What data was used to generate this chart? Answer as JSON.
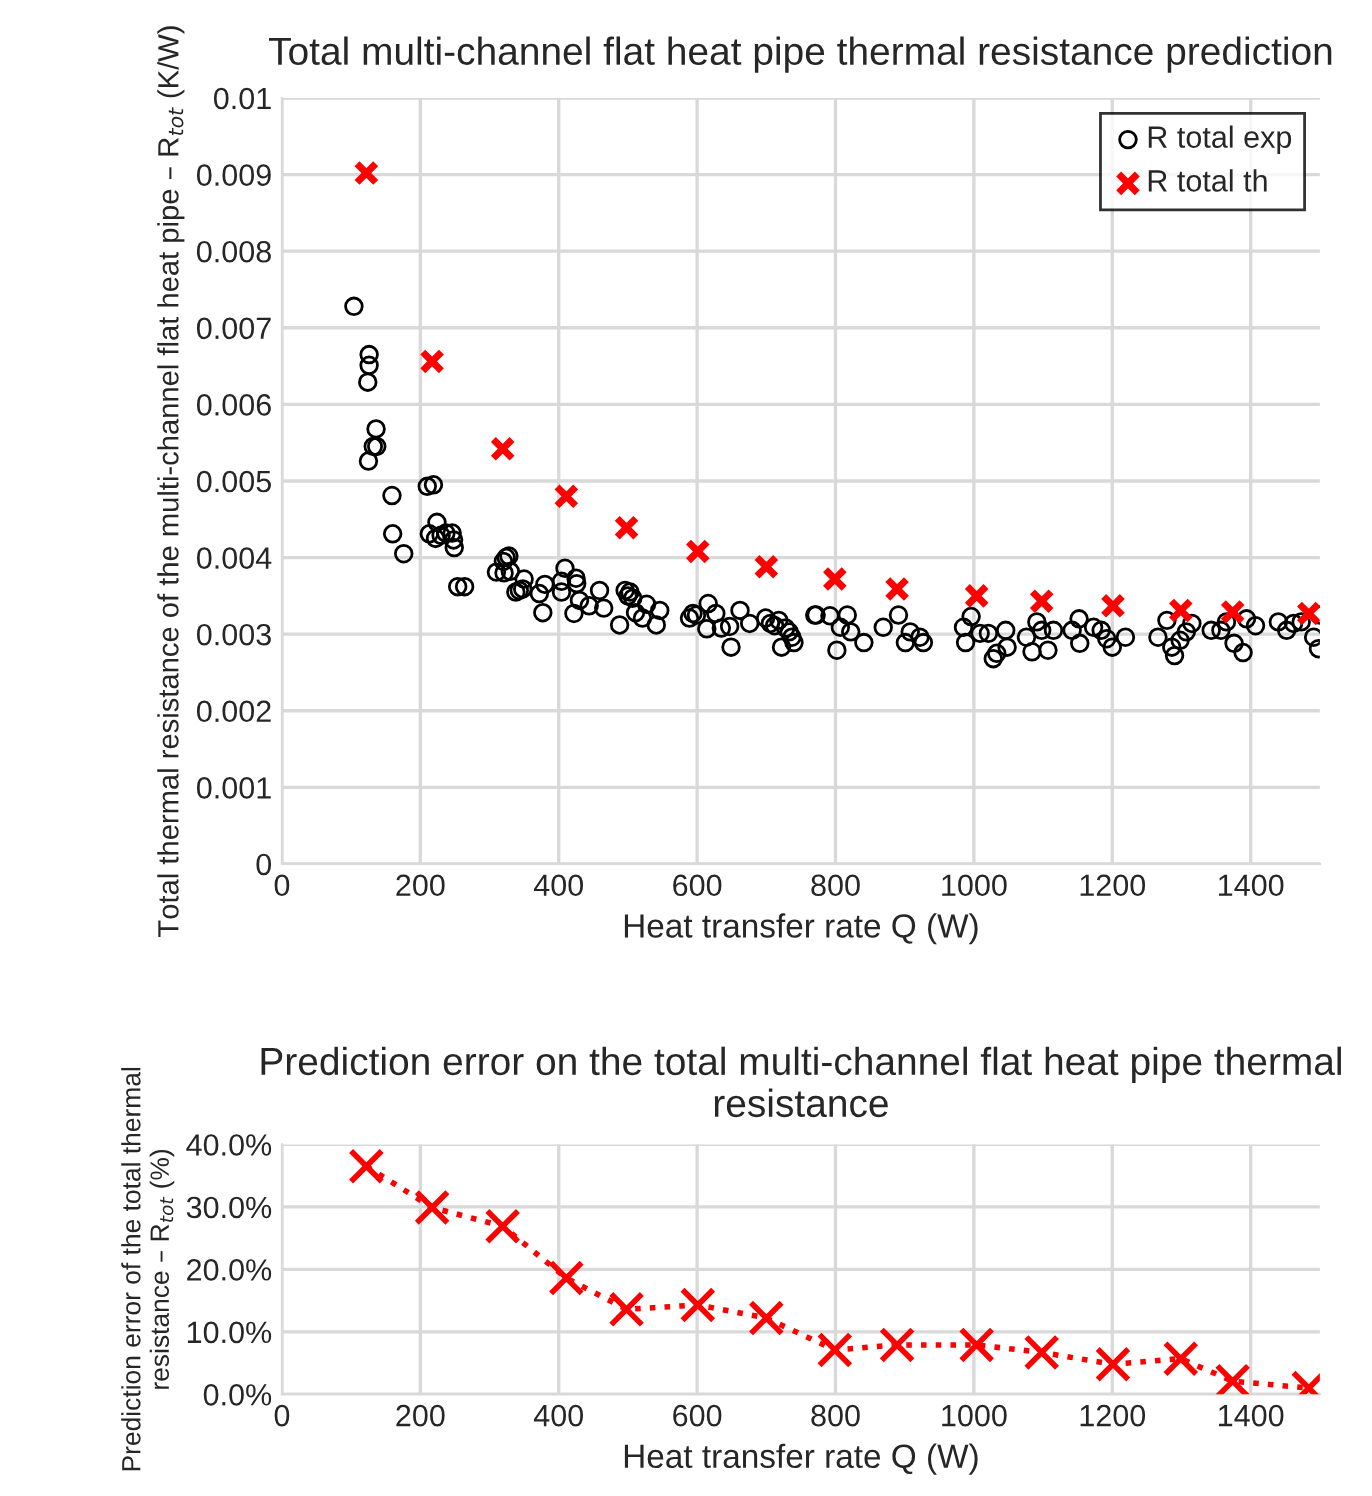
{
  "chart_data": [
    {
      "type": "scatter",
      "title": "Total multi-channel flat heat pipe thermal resistance prediction",
      "xlabel": "Heat transfer rate Q (W)",
      "ylabel": "Total thermal resistance of the multi-channel flat heat pipe – R$_{tot}$ (K/W)",
      "xlim": [
        0,
        1500
      ],
      "xticks": [
        0,
        200,
        400,
        600,
        800,
        1000,
        1200,
        1400
      ],
      "ylim": [
        0,
        0.01
      ],
      "yticks": [
        0,
        0.001,
        0.002,
        0.003,
        0.004,
        0.005,
        0.006,
        0.007,
        0.008,
        0.009,
        0.01
      ],
      "grid": true,
      "legend": "top right",
      "series": [
        {
          "name": "R total exp",
          "color": "#000000",
          "marker": "circle",
          "x": [
            104,
            126,
            126,
            124,
            136,
            132,
            137,
            125,
            159,
            160,
            176,
            210,
            219,
            213,
            224,
            222,
            230,
            237,
            246,
            249,
            248,
            254,
            264,
            310,
            320,
            324,
            328,
            321,
            330,
            338,
            343,
            350,
            348,
            372,
            377,
            380,
            404,
            409,
            404,
            422,
            425,
            426,
            430,
            444,
            459,
            465,
            488,
            496,
            500,
            503,
            507,
            511,
            521,
            527,
            541,
            546,
            589,
            594,
            599,
            616,
            614,
            627,
            635,
            647,
            649,
            662,
            676,
            699,
            706,
            712,
            718,
            722,
            728,
            733,
            737,
            740,
            770,
            772,
            792,
            802,
            807,
            817,
            822,
            841,
            869,
            891,
            901,
            908,
            922,
            927,
            985,
            988,
            996,
            1009,
            1021,
            1028,
            1033,
            1046,
            1048,
            1076,
            1084,
            1091,
            1098,
            1107,
            1115,
            1142,
            1152,
            1153,
            1173,
            1184,
            1192,
            1200,
            1219,
            1266,
            1279,
            1286,
            1290,
            1298,
            1307,
            1315,
            1343,
            1357,
            1365,
            1376,
            1389,
            1394,
            1407,
            1440,
            1452,
            1462,
            1473,
            1491,
            1498,
            1500
          ],
          "values": [
            0.00728,
            0.00665,
            0.00651,
            0.00629,
            0.00568,
            0.00545,
            0.00545,
            0.00526,
            0.00481,
            0.00431,
            0.00405,
            0.00493,
            0.00495,
            0.00431,
            0.00446,
            0.00425,
            0.00429,
            0.00432,
            0.00432,
            0.00413,
            0.00423,
            0.00362,
            0.00362,
            0.00381,
            0.00395,
            0.004,
            0.00402,
            0.0038,
            0.00382,
            0.00355,
            0.00357,
            0.00372,
            0.00359,
            0.00353,
            0.00328,
            0.00365,
            0.00369,
            0.00386,
            0.00355,
            0.00327,
            0.00373,
            0.00366,
            0.00344,
            0.00337,
            0.00357,
            0.00334,
            0.00312,
            0.00357,
            0.0035,
            0.00355,
            0.00347,
            0.00328,
            0.00321,
            0.00339,
            0.00312,
            0.00331,
            0.00321,
            0.00327,
            0.00325,
            0.0034,
            0.00307,
            0.00327,
            0.00308,
            0.0031,
            0.00283,
            0.00331,
            0.00314,
            0.00321,
            0.00314,
            0.00311,
            0.00318,
            0.00283,
            0.00308,
            0.00303,
            0.00296,
            0.00289,
            0.00325,
            0.00325,
            0.00324,
            0.00279,
            0.00309,
            0.00325,
            0.00303,
            0.00289,
            0.00309,
            0.00325,
            0.00289,
            0.00303,
            0.00296,
            0.00289,
            0.00309,
            0.00289,
            0.00323,
            0.00301,
            0.00301,
            0.00268,
            0.00275,
            0.00305,
            0.00283,
            0.00296,
            0.00277,
            0.00316,
            0.00305,
            0.00279,
            0.00305,
            0.00305,
            0.0032,
            0.00288,
            0.00309,
            0.00305,
            0.00294,
            0.00283,
            0.00296,
            0.00296,
            0.00318,
            0.00283,
            0.00272,
            0.00292,
            0.00303,
            0.00314,
            0.00305,
            0.00305,
            0.00316,
            0.00288,
            0.00276,
            0.0032,
            0.00311,
            0.00316,
            0.00305,
            0.00314,
            0.00316,
            0.00296,
            0.00281,
            0.00325
          ]
        },
        {
          "name": "R total th",
          "color": "#ff0000",
          "marker": "cross",
          "x": [
            122,
            217,
            319,
            411,
            498,
            601,
            700,
            799,
            889,
            1004,
            1098,
            1201,
            1299,
            1374,
            1484
          ],
          "values": [
            0.00902,
            0.00656,
            0.00542,
            0.0048,
            0.00439,
            0.00408,
            0.00388,
            0.00372,
            0.00359,
            0.0035,
            0.00343,
            0.00337,
            0.00331,
            0.00329,
            0.00327
          ]
        }
      ]
    },
    {
      "type": "line",
      "title": "Prediction error on the total multi-channel flat heat pipe thermal resistance",
      "xlabel": "Heat transfer rate Q (W)",
      "ylabel": "Prediction error of the total thermal resistance – R$_{tot}$ (%)",
      "xlim": [
        0,
        1500
      ],
      "xticks": [
        0,
        200,
        400,
        600,
        800,
        1000,
        1200,
        1400
      ],
      "ylim": [
        0,
        40
      ],
      "yticks": [
        {
          "value": 0,
          "label": "0.0%"
        },
        {
          "value": 10,
          "label": "10.0%"
        },
        {
          "value": 20,
          "label": "20.0%"
        },
        {
          "value": 30,
          "label": "30.0%"
        },
        {
          "value": 40,
          "label": "40.0%"
        }
      ],
      "grid": true,
      "marker": "cross",
      "line_style": "dotted",
      "series": [
        {
          "color": "#ff0000",
          "x": [
            122,
            217,
            319,
            411,
            498,
            601,
            700,
            799,
            889,
            1004,
            1098,
            1201,
            1299,
            1374,
            1484
          ],
          "values": [
            36.5,
            29.9,
            26.9,
            18.6,
            13.6,
            14.3,
            12.2,
            7.1,
            7.9,
            7.9,
            6.7,
            4.8,
            5.7,
            2.1,
            1.0
          ]
        }
      ]
    }
  ]
}
